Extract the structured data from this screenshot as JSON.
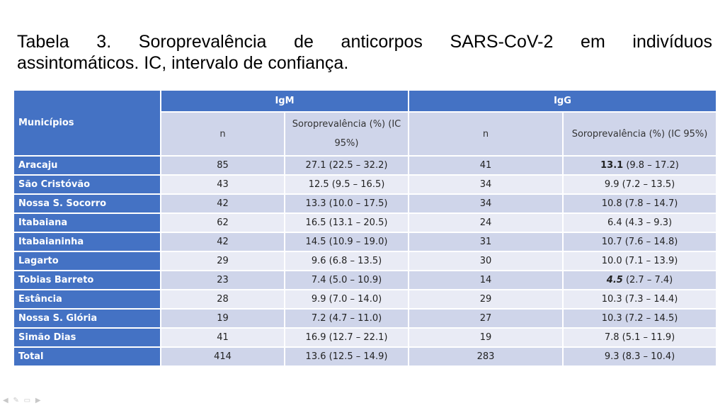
{
  "title_line1": "Tabela 3. Soroprevalência de anticorpos SARS-CoV-2 em indivíduos",
  "title_line2": "assintomáticos. IC, intervalo de confiança.",
  "headers": {
    "municipios": "Municípios",
    "igm": "IgM",
    "igg": "IgG",
    "n": "n",
    "sp_igm": "Soroprevalência (%) (IC 95%)",
    "sp_igg": "Soroprevalência (%) (IC 95%)"
  },
  "rows": [
    {
      "name": "Aracaju",
      "igm_n": "85",
      "igm_sp": "27.1 (22.5 – 32.2)",
      "igg_n": "41",
      "igg_sp_main": "13.1",
      "igg_sp_rest": " (9.8 – 17.2)",
      "igg_style": "bold"
    },
    {
      "name": "São Cristóvão",
      "igm_n": "43",
      "igm_sp": "12.5 (9.5 – 16.5)",
      "igg_n": "34",
      "igg_sp_main": "9.9",
      "igg_sp_rest": " (7.2 – 13.5)",
      "igg_style": ""
    },
    {
      "name": "Nossa S. Socorro",
      "igm_n": "42",
      "igm_sp": "13.3 (10.0 – 17.5)",
      "igg_n": "34",
      "igg_sp_main": "10.8",
      "igg_sp_rest": " (7.8 – 14.7)",
      "igg_style": ""
    },
    {
      "name": "Itabaiana",
      "igm_n": "62",
      "igm_sp": "16.5 (13.1 – 20.5)",
      "igg_n": "24",
      "igg_sp_main": "6.4",
      "igg_sp_rest": " (4.3 – 9.3)",
      "igg_style": ""
    },
    {
      "name": "Itabaianinha",
      "igm_n": "42",
      "igm_sp": "14.5 (10.9 – 19.0)",
      "igg_n": "31",
      "igg_sp_main": "10.7",
      "igg_sp_rest": " (7.6 – 14.8)",
      "igg_style": ""
    },
    {
      "name": "Lagarto",
      "igm_n": "29",
      "igm_sp": "9.6 (6.8 – 13.5)",
      "igg_n": "30",
      "igg_sp_main": "10.0",
      "igg_sp_rest": " (7.1 – 13.9)",
      "igg_style": ""
    },
    {
      "name": "Tobias Barreto",
      "igm_n": "23",
      "igm_sp": "7.4 (5.0 – 10.9)",
      "igg_n": "14",
      "igg_sp_main": "4.5",
      "igg_sp_rest": " (2.7 – 7.4)",
      "igg_style": "bolditalic"
    },
    {
      "name": "Estância",
      "igm_n": "28",
      "igm_sp": "9.9 (7.0 – 14.0)",
      "igg_n": "29",
      "igg_sp_main": "10.3",
      "igg_sp_rest": " (7.3 – 14.4)",
      "igg_style": ""
    },
    {
      "name": "Nossa S. Glória",
      "igm_n": "19",
      "igm_sp": "7.2 (4.7 – 11.0)",
      "igg_n": "27",
      "igg_sp_main": "10.3",
      "igg_sp_rest": " (7.2 – 14.5)",
      "igg_style": ""
    },
    {
      "name": "Simão Dias",
      "igm_n": "41",
      "igm_sp": "16.9 (12.7 – 22.1)",
      "igg_n": "19",
      "igg_sp_main": "7.8",
      "igg_sp_rest": " (5.1 – 11.9)",
      "igg_style": ""
    },
    {
      "name": "Total",
      "igm_n": "414",
      "igm_sp": "13.6 (12.5 – 14.9)",
      "igg_n": "283",
      "igg_sp_main": "9.3",
      "igg_sp_rest": " (8.3 – 10.4)",
      "igg_style": ""
    }
  ],
  "colors": {
    "header_blue": "#4472c4",
    "row_light": "#e9ebf5",
    "row_dark": "#cfd5ea"
  },
  "nav_icons": [
    "prev-icon",
    "edit-icon",
    "menu-icon",
    "next-icon"
  ]
}
